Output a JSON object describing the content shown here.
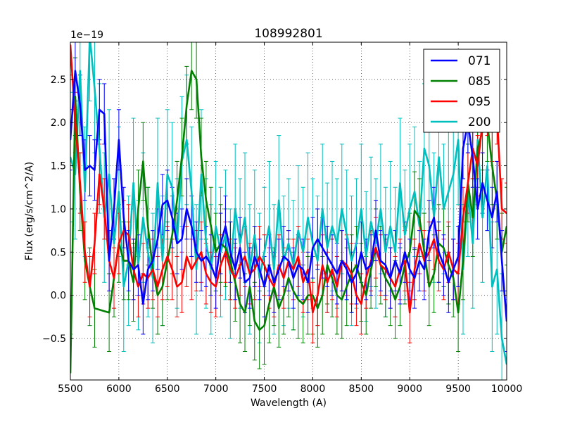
{
  "chart_data": {
    "type": "line",
    "title": "108992801",
    "xlabel": "Wavelength (A)",
    "ylabel": "Flux (erg/s/cm^2/A)",
    "y_scale_label": "1e−19",
    "xlim": [
      5500,
      10000
    ],
    "ylim": [
      -0.98,
      2.93
    ],
    "x_ticks": [
      5500,
      6000,
      6500,
      7000,
      7500,
      8000,
      8500,
      9000,
      9500,
      10000
    ],
    "x_tick_labels": [
      "5500",
      "6000",
      "6500",
      "7000",
      "7500",
      "8000",
      "8500",
      "9000",
      "9500",
      "10000"
    ],
    "y_ticks": [
      -0.5,
      0.0,
      0.5,
      1.0,
      1.5,
      2.0,
      2.5
    ],
    "y_tick_labels": [
      "−0.5",
      "0.0",
      "0.5",
      "1.0",
      "1.5",
      "2.0",
      "2.5"
    ],
    "grid": true,
    "legend_position": "top-right",
    "series": [
      {
        "name": "071",
        "color": "#0000ff",
        "x": [
          5500,
          5550,
          5600,
          5650,
          5700,
          5750,
          5800,
          5850,
          5900,
          5950,
          6000,
          6050,
          6100,
          6150,
          6200,
          6250,
          6300,
          6350,
          6400,
          6450,
          6500,
          6550,
          6600,
          6650,
          6700,
          6750,
          6800,
          6850,
          6900,
          6950,
          7000,
          7050,
          7100,
          7150,
          7200,
          7250,
          7300,
          7350,
          7400,
          7450,
          7500,
          7550,
          7600,
          7650,
          7700,
          7750,
          7800,
          7850,
          7900,
          7950,
          8000,
          8050,
          8100,
          8150,
          8200,
          8250,
          8300,
          8350,
          8400,
          8450,
          8500,
          8550,
          8600,
          8650,
          8700,
          8750,
          8800,
          8850,
          8900,
          8950,
          9000,
          9050,
          9100,
          9150,
          9200,
          9250,
          9300,
          9350,
          9400,
          9450,
          9500,
          9550,
          9600,
          9650,
          9700,
          9750,
          9800,
          9850,
          9900,
          9950,
          10000
        ],
        "y": [
          1.8,
          2.6,
          2.2,
          1.45,
          1.5,
          1.45,
          2.15,
          2.1,
          0.4,
          1.0,
          1.8,
          0.9,
          0.4,
          0.3,
          0.35,
          -0.1,
          0.3,
          0.4,
          0.65,
          1.05,
          1.1,
          0.9,
          0.6,
          0.65,
          1.0,
          0.8,
          0.5,
          0.4,
          0.45,
          0.35,
          0.2,
          0.6,
          0.8,
          0.5,
          0.3,
          0.55,
          0.15,
          0.2,
          0.45,
          0.3,
          0.1,
          0.35,
          0.15,
          0.3,
          0.45,
          0.4,
          0.2,
          0.35,
          0.3,
          0.15,
          0.55,
          0.65,
          0.55,
          0.45,
          0.35,
          0.25,
          0.4,
          0.3,
          0.15,
          0.25,
          0.5,
          0.3,
          0.35,
          0.75,
          0.4,
          0.35,
          0.2,
          0.4,
          0.25,
          0.5,
          0.3,
          0.2,
          0.4,
          0.3,
          0.75,
          0.9,
          0.5,
          0.35,
          0.15,
          0.3,
          0.45,
          1.7,
          2.0,
          1.6,
          1.0,
          1.3,
          1.1,
          0.9,
          1.2,
          0.4,
          -0.3
        ]
      },
      {
        "name": "085",
        "color": "#008000",
        "x": [
          5500,
          5550,
          5600,
          5650,
          5700,
          5750,
          5900,
          5950,
          6000,
          6050,
          6100,
          6150,
          6200,
          6250,
          6300,
          6350,
          6400,
          6450,
          6500,
          6550,
          6600,
          6650,
          6700,
          6750,
          6800,
          6850,
          6900,
          6950,
          7000,
          7050,
          7100,
          7150,
          7200,
          7250,
          7300,
          7350,
          7400,
          7450,
          7500,
          7550,
          7600,
          7650,
          7700,
          7750,
          7800,
          7850,
          7900,
          7950,
          8000,
          8050,
          8100,
          8150,
          8200,
          8250,
          8300,
          8350,
          8400,
          8450,
          8500,
          8550,
          8600,
          8650,
          8700,
          8750,
          8800,
          8850,
          8900,
          8950,
          9000,
          9050,
          9100,
          9150,
          9200,
          9250,
          9300,
          9350,
          9400,
          9450,
          9500,
          9550,
          9600,
          9650,
          9700,
          9750,
          9800,
          9850,
          9900,
          9950,
          10000
        ],
        "y": [
          -0.9,
          2.3,
          1.2,
          0.4,
          0.1,
          -0.15,
          -0.2,
          0.2,
          0.6,
          0.4,
          0.4,
          0.15,
          1.0,
          1.55,
          0.8,
          0.3,
          0.0,
          0.1,
          0.4,
          0.7,
          1.1,
          1.6,
          2.2,
          2.6,
          2.5,
          1.6,
          1.1,
          0.8,
          0.5,
          0.6,
          0.55,
          0.4,
          0.15,
          -0.1,
          -0.2,
          0.1,
          -0.3,
          -0.4,
          -0.35,
          -0.1,
          0.1,
          -0.15,
          0.0,
          0.2,
          0.05,
          -0.05,
          -0.1,
          0.0,
          0.0,
          -0.15,
          0.0,
          0.35,
          0.2,
          0.0,
          -0.05,
          0.1,
          0.25,
          0.35,
          0.15,
          0.0,
          0.3,
          0.55,
          0.35,
          0.2,
          0.1,
          -0.05,
          0.1,
          0.35,
          0.5,
          0.98,
          0.9,
          0.5,
          0.1,
          0.25,
          0.6,
          0.55,
          0.35,
          0.2,
          -0.2,
          0.4,
          1.3,
          0.9,
          1.7,
          1.9,
          2.0,
          1.5,
          1.1,
          0.5,
          0.8
        ]
      },
      {
        "name": "095",
        "color": "#ff0000",
        "x": [
          5500,
          5550,
          5600,
          5650,
          5700,
          5750,
          5800,
          5850,
          5900,
          5950,
          6000,
          6050,
          6100,
          6150,
          6200,
          6250,
          6300,
          6350,
          6400,
          6450,
          6500,
          6550,
          6600,
          6650,
          6700,
          6750,
          6800,
          6850,
          6900,
          6950,
          7000,
          7050,
          7100,
          7150,
          7200,
          7250,
          7300,
          7350,
          7400,
          7450,
          7500,
          7550,
          7600,
          7650,
          7700,
          7750,
          7800,
          7850,
          7900,
          7950,
          8000,
          8050,
          8100,
          8150,
          8200,
          8250,
          8300,
          8350,
          8400,
          8450,
          8500,
          8550,
          8600,
          8650,
          8700,
          8750,
          8800,
          8850,
          8900,
          8950,
          9000,
          9050,
          9100,
          9150,
          9200,
          9250,
          9300,
          9350,
          9400,
          9450,
          9500,
          9550,
          9600,
          9650,
          9700,
          9750,
          9800,
          9850,
          9900,
          9950,
          10000
        ],
        "y": [
          2.9,
          2.0,
          1.3,
          0.5,
          0.1,
          0.6,
          1.4,
          1.0,
          0.4,
          0.2,
          0.6,
          0.75,
          0.7,
          0.3,
          0.1,
          0.25,
          0.2,
          0.3,
          0.1,
          0.3,
          0.45,
          0.3,
          0.1,
          0.15,
          0.45,
          0.3,
          0.4,
          0.5,
          0.25,
          0.15,
          0.1,
          0.35,
          0.5,
          0.3,
          0.2,
          0.35,
          0.45,
          0.25,
          0.3,
          0.45,
          0.35,
          0.2,
          0.1,
          0.35,
          0.2,
          0.4,
          0.3,
          0.45,
          0.15,
          0.3,
          -0.2,
          0.0,
          0.35,
          0.15,
          0.3,
          0.1,
          0.4,
          0.35,
          0.25,
          0.0,
          -0.1,
          0.2,
          0.4,
          0.55,
          0.35,
          0.3,
          0.2,
          0.1,
          0.3,
          0.4,
          -0.2,
          0.3,
          0.6,
          0.4,
          0.5,
          0.65,
          0.4,
          0.3,
          0.5,
          0.3,
          0.25,
          0.9,
          1.3,
          1.7,
          1.5,
          2.0,
          2.2,
          1.9,
          2.1,
          1.0,
          0.95
        ]
      },
      {
        "name": "200",
        "color": "#00bfbf",
        "x": [
          5500,
          5550,
          5600,
          5650,
          5700,
          5750,
          5800,
          5850,
          5900,
          5950,
          6000,
          6050,
          6100,
          6150,
          6200,
          6250,
          6300,
          6350,
          6400,
          6450,
          6500,
          6550,
          6600,
          6650,
          6700,
          6750,
          6800,
          6850,
          6900,
          6950,
          7000,
          7050,
          7100,
          7150,
          7200,
          7250,
          7300,
          7350,
          7400,
          7450,
          7500,
          7550,
          7600,
          7650,
          7700,
          7750,
          7800,
          7850,
          7900,
          7950,
          8000,
          8050,
          8100,
          8150,
          8200,
          8250,
          8300,
          8350,
          8400,
          8450,
          8500,
          8550,
          8600,
          8650,
          8700,
          8750,
          8800,
          8850,
          8900,
          8950,
          9000,
          9050,
          9100,
          9150,
          9200,
          9250,
          9300,
          9350,
          9400,
          9450,
          9500,
          9550,
          9600,
          9650,
          9700,
          9750,
          9800,
          9850,
          9900,
          9950,
          10000
        ],
        "y": [
          1.6,
          1.4,
          2.6,
          1.2,
          3.0,
          2.4,
          1.7,
          0.9,
          1.4,
          0.6,
          1.2,
          0.1,
          0.4,
          1.3,
          0.35,
          0.9,
          0.5,
          0.2,
          1.3,
          0.4,
          1.4,
          1.25,
          0.6,
          1.55,
          1.8,
          1.2,
          0.3,
          1.4,
          0.6,
          0.3,
          0.8,
          0.5,
          0.7,
          0.25,
          1.0,
          0.6,
          0.9,
          0.3,
          0.7,
          0.2,
          0.5,
          0.8,
          0.3,
          1.1,
          0.4,
          0.6,
          0.35,
          0.75,
          0.5,
          0.9,
          0.6,
          0.4,
          1.0,
          0.55,
          0.8,
          0.6,
          1.0,
          0.7,
          0.4,
          0.6,
          1.0,
          0.45,
          0.85,
          0.6,
          1.0,
          0.5,
          0.8,
          0.5,
          1.3,
          0.7,
          1.0,
          1.2,
          0.8,
          1.7,
          1.5,
          0.9,
          1.6,
          1.0,
          1.2,
          1.4,
          1.8,
          0.3,
          1.2,
          0.6,
          1.8,
          0.9,
          1.5,
          0.1,
          0.3,
          -0.5,
          -0.8
        ]
      }
    ]
  }
}
